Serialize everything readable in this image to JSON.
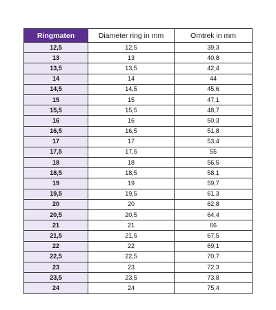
{
  "table": {
    "headers": [
      "Ringmaten",
      "Diameter ring in mm",
      "Omtrek in mm"
    ],
    "rows": [
      [
        "12,5",
        "12,5",
        "39,3"
      ],
      [
        "13",
        "13",
        "40,8"
      ],
      [
        "13,5",
        "13,5",
        "42,4"
      ],
      [
        "14",
        "14",
        "44"
      ],
      [
        "14,5",
        "14,5",
        "45,6"
      ],
      [
        "15",
        "15",
        "47,1"
      ],
      [
        "15,5",
        "15,5",
        "48,7"
      ],
      [
        "16",
        "16",
        "50,3"
      ],
      [
        "16,5",
        "16,5",
        "51,8"
      ],
      [
        "17",
        "17",
        "53,4"
      ],
      [
        "17,5",
        "17,5",
        "55"
      ],
      [
        "18",
        "18",
        "56,5"
      ],
      [
        "18,5",
        "18,5",
        "58,1"
      ],
      [
        "19",
        "19",
        "59,7"
      ],
      [
        "19,5",
        "19,5",
        "61,3"
      ],
      [
        "20",
        "20",
        "62,8"
      ],
      [
        "20,5",
        "20,5",
        "64,4"
      ],
      [
        "21",
        "21",
        "66"
      ],
      [
        "21,5",
        "21,5",
        "67,5"
      ],
      [
        "22",
        "22",
        "69,1"
      ],
      [
        "22,5",
        "22,5",
        "70,7"
      ],
      [
        "23",
        "23",
        "72,3"
      ],
      [
        "23,5",
        "23,5",
        "73,8"
      ],
      [
        "24",
        "24",
        "75,4"
      ]
    ]
  },
  "colors": {
    "header_accent": "#5b2e91",
    "size_column_fill": "#ece5f5"
  }
}
